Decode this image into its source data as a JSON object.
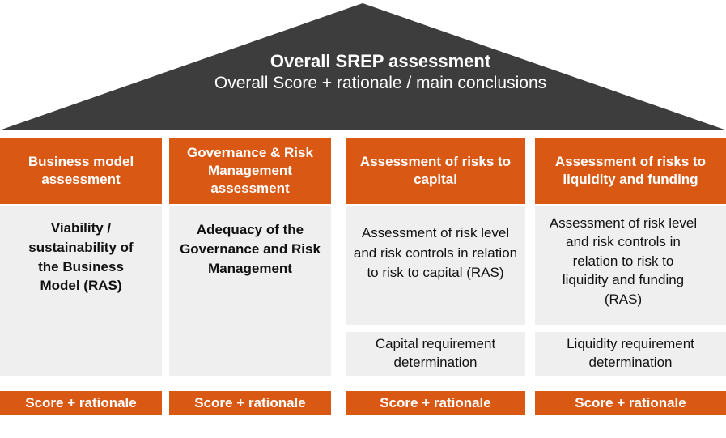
{
  "colors": {
    "roof": "#3d3d3d",
    "accent": "#d95814",
    "panel": "#efefef"
  },
  "roof": {
    "title": "Overall SREP assessment",
    "subtitle": "Overall Score + rationale / main conclusions"
  },
  "pillars": [
    {
      "header": "Business model assessment",
      "body": "Viability / sustainability of the  Business Model  (RAS)",
      "footer": "Score + rationale"
    },
    {
      "header": "Governance & Risk Management assessment",
      "body": "Adequacy of the Governance and Risk Management",
      "footer": "Score + rationale"
    },
    {
      "header": "Assessment of risks to capital",
      "body": "Assessment of risk level and risk controls in relation to risk to capital (RAS)",
      "sub_body": "Capital requirement determination",
      "footer": "Score + rationale"
    },
    {
      "header": "Assessment of risks to liquidity and funding",
      "body": "Assessment of risk level and risk controls in  relation to risk to liquidity and funding (RAS)",
      "sub_body": "Liquidity requirement determination",
      "footer": "Score + rationale"
    }
  ]
}
